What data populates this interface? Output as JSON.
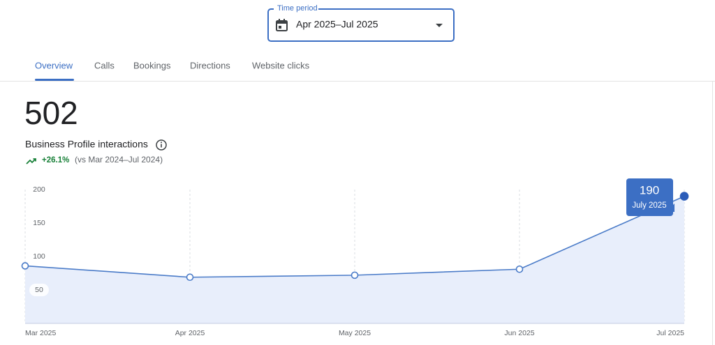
{
  "time_period": {
    "label": "Time period",
    "value": "Apr 2025–Jul 2025"
  },
  "tabs": [
    "Overview",
    "Calls",
    "Bookings",
    "Directions",
    "Website clicks"
  ],
  "summary": {
    "total": 502,
    "label": "Business Profile interactions",
    "change": "+26.1%",
    "comparison": "(vs Mar 2024–Jul 2024)"
  },
  "chart_data": {
    "type": "line",
    "categories": [
      "Mar 2025",
      "Apr 2025",
      "May 2025",
      "Jun 2025",
      "Jul 2025"
    ],
    "values": [
      86,
      69,
      72,
      81,
      190
    ],
    "color": "#4a7bc8",
    "ylim": [
      0,
      200
    ],
    "yticks": [
      50,
      100,
      150,
      200
    ],
    "tooltip": {
      "title": "July 2025"
    }
  }
}
